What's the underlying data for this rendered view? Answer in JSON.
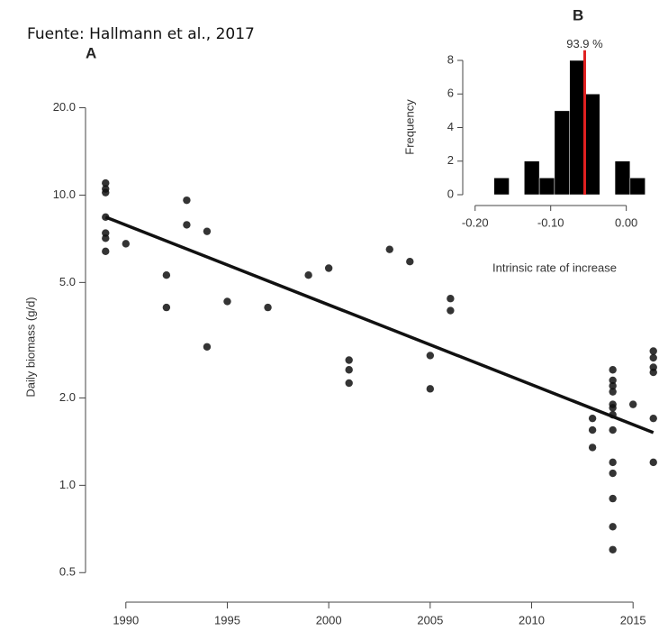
{
  "source": "Fuente: Hallmann et al., 2017",
  "chart_data": [
    {
      "type": "scatter",
      "panel": "A",
      "y_label": "Daily biomass (g/d)",
      "log_y": true,
      "color": "#111111",
      "x": [
        1989,
        1989,
        1989,
        1989,
        1989,
        1989,
        1989,
        1990,
        1992,
        1992,
        1993,
        1993,
        1994,
        1994,
        1995,
        1997,
        1999,
        2000,
        2001,
        2001,
        2001,
        2003,
        2004,
        2005,
        2005,
        2006,
        2006,
        2013,
        2013,
        2013,
        2014,
        2014,
        2014,
        2014,
        2014,
        2014,
        2014,
        2014,
        2014,
        2014,
        2014,
        2014,
        2014,
        2015,
        2016,
        2016,
        2016,
        2016,
        2016,
        2016
      ],
      "values": [
        11.0,
        10.5,
        10.2,
        8.4,
        7.4,
        7.1,
        6.4,
        6.8,
        5.3,
        4.1,
        9.6,
        7.9,
        7.5,
        3.0,
        4.3,
        4.1,
        5.3,
        5.6,
        2.7,
        2.5,
        2.25,
        6.5,
        5.9,
        2.8,
        2.15,
        4.4,
        4.0,
        1.7,
        1.55,
        1.35,
        2.5,
        2.3,
        2.2,
        2.1,
        1.9,
        1.85,
        1.75,
        1.55,
        1.2,
        1.1,
        0.9,
        0.72,
        0.6,
        1.9,
        2.9,
        2.75,
        2.55,
        2.45,
        1.7,
        1.2
      ],
      "trend": {
        "x": [
          1989,
          2016
        ],
        "values": [
          8.4,
          1.52
        ],
        "color": "#111111"
      },
      "xlim": [
        1988.5,
        2016.5
      ],
      "xticks": [
        1990,
        1995,
        2000,
        2005,
        2010,
        2015
      ],
      "ylim": [
        0.45,
        23
      ],
      "yticks": [
        0.5,
        {
          "value": 1,
          "label": "1.0"
        },
        {
          "value": 2,
          "label": "2.0"
        },
        {
          "value": 5,
          "label": "5.0"
        },
        {
          "value": 10,
          "label": "10.0"
        },
        {
          "value": 20,
          "label": "20.0"
        }
      ]
    },
    {
      "type": "histogram",
      "panel": "B",
      "x_label": "Intrinsic rate of increase",
      "y_label": "Frequency",
      "color": "#000000",
      "bins": [
        -0.175,
        -0.155,
        -0.135,
        -0.115,
        -0.095,
        -0.075,
        -0.055,
        -0.035,
        -0.015,
        0.005,
        0.025
      ],
      "counts": [
        1,
        0,
        2,
        1,
        5,
        8,
        6,
        0,
        2,
        1
      ],
      "marker": {
        "value": -0.055,
        "label": "93.9 %",
        "color": "#e02020"
      },
      "xlim": [
        -0.214,
        0.029
      ],
      "xticks": [
        {
          "value": -0.2,
          "label": "-0.20"
        },
        {
          "value": -0.1,
          "label": "-0.10"
        },
        {
          "value": 0,
          "label": "0.00"
        }
      ],
      "ylim": [
        0,
        8.5
      ],
      "yticks": [
        0,
        2,
        4,
        6,
        8
      ]
    }
  ]
}
